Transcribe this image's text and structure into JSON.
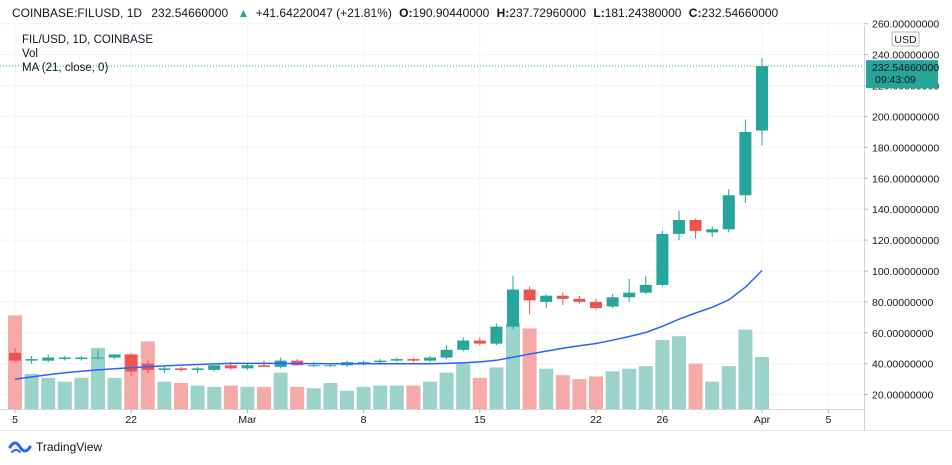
{
  "header": {
    "symbol": "COINBASE:FILUSD, 1D",
    "last": "232.54660000",
    "change_arrow": "▲",
    "change": "+41.64220047 (+21.81%)",
    "o_label": "O:",
    "o_value": "190.90440000",
    "h_label": "H:",
    "h_value": "237.72960000",
    "l_label": "L:",
    "l_value": "181.24380000",
    "c_label": "C:",
    "c_value": "232.54660000"
  },
  "legend": {
    "pair": "FIL/USD, 1D, COINBASE",
    "volume": "Vol",
    "ma": "MA (21, close, 0)"
  },
  "price_axis": {
    "currency": "USD",
    "last_price": "232.54660000",
    "countdown": "09:43:09"
  },
  "footer": {
    "brand": "TradingView",
    "logo_icon": "tradingview-logo-icon"
  },
  "colors": {
    "up": "#26a69a",
    "down": "#ef5350",
    "ma": "#2962ff",
    "up_volume": "#9bd3cb",
    "down_volume": "#f5aaa8"
  },
  "chart_data": {
    "type": "candlestick",
    "y_ticks": [
      "20.00000000",
      "40.00000000",
      "60.00000000",
      "80.00000000",
      "100.00000000",
      "120.00000000",
      "140.00000000",
      "160.00000000",
      "180.00000000",
      "200.00000000",
      "220.00000000",
      "240.00000000",
      "260.00000000"
    ],
    "ylim": [
      12,
      265
    ],
    "x_ticks": [
      {
        "label": "5",
        "day": 0
      },
      {
        "label": "22",
        "day": 7
      },
      {
        "label": "Mar",
        "day": 14
      },
      {
        "label": "8",
        "day": 21
      },
      {
        "label": "15",
        "day": 28
      },
      {
        "label": "22",
        "day": 35
      },
      {
        "label": "26",
        "day": 39
      },
      {
        "label": "Apr",
        "day": 45
      },
      {
        "label": "5",
        "day": 49
      }
    ],
    "candles": [
      {
        "o": 47,
        "h": 50,
        "l": 41,
        "c": 42,
        "vol": 72
      },
      {
        "o": 42,
        "h": 45,
        "l": 40,
        "c": 43,
        "vol": 27
      },
      {
        "o": 42,
        "h": 46,
        "l": 41,
        "c": 44,
        "vol": 24
      },
      {
        "o": 43,
        "h": 45,
        "l": 42,
        "c": 44,
        "vol": 21
      },
      {
        "o": 43,
        "h": 45,
        "l": 42,
        "c": 44,
        "vol": 24
      },
      {
        "o": 44,
        "h": 49,
        "l": 43,
        "c": 44,
        "vol": 47
      },
      {
        "o": 44,
        "h": 46,
        "l": 43,
        "c": 46,
        "vol": 24
      },
      {
        "o": 46,
        "h": 47,
        "l": 32,
        "c": 35,
        "vol": 42
      },
      {
        "o": 40,
        "h": 42,
        "l": 34,
        "c": 36,
        "vol": 52
      },
      {
        "o": 36,
        "h": 38,
        "l": 34,
        "c": 37,
        "vol": 21
      },
      {
        "o": 37,
        "h": 38,
        "l": 35,
        "c": 36,
        "vol": 20
      },
      {
        "o": 36,
        "h": 38,
        "l": 34,
        "c": 37,
        "vol": 18
      },
      {
        "o": 36,
        "h": 39,
        "l": 35,
        "c": 39,
        "vol": 17
      },
      {
        "o": 39,
        "h": 41,
        "l": 36,
        "c": 37,
        "vol": 18
      },
      {
        "o": 37,
        "h": 40,
        "l": 36,
        "c": 39,
        "vol": 17
      },
      {
        "o": 39,
        "h": 42,
        "l": 38,
        "c": 38,
        "vol": 17
      },
      {
        "o": 38,
        "h": 44,
        "l": 37,
        "c": 42,
        "vol": 28
      },
      {
        "o": 42,
        "h": 43,
        "l": 39,
        "c": 39,
        "vol": 17
      },
      {
        "o": 39,
        "h": 41,
        "l": 38,
        "c": 39,
        "vol": 16
      },
      {
        "o": 39,
        "h": 40,
        "l": 38,
        "c": 39,
        "vol": 20
      },
      {
        "o": 39,
        "h": 42,
        "l": 38,
        "c": 41,
        "vol": 14
      },
      {
        "o": 41,
        "h": 42,
        "l": 39,
        "c": 41,
        "vol": 17
      },
      {
        "o": 41,
        "h": 43,
        "l": 40,
        "c": 42,
        "vol": 18
      },
      {
        "o": 42,
        "h": 44,
        "l": 41,
        "c": 43,
        "vol": 18
      },
      {
        "o": 43,
        "h": 44,
        "l": 41,
        "c": 42,
        "vol": 18
      },
      {
        "o": 42,
        "h": 45,
        "l": 41,
        "c": 44,
        "vol": 21
      },
      {
        "o": 44,
        "h": 52,
        "l": 43,
        "c": 49,
        "vol": 28
      },
      {
        "o": 49,
        "h": 57,
        "l": 48,
        "c": 55,
        "vol": 35
      },
      {
        "o": 55,
        "h": 57,
        "l": 52,
        "c": 53,
        "vol": 24
      },
      {
        "o": 53,
        "h": 66,
        "l": 52,
        "c": 64,
        "vol": 32
      },
      {
        "o": 64,
        "h": 97,
        "l": 62,
        "c": 88,
        "vol": 66
      },
      {
        "o": 88,
        "h": 90,
        "l": 72,
        "c": 81,
        "vol": 62
      },
      {
        "o": 80,
        "h": 85,
        "l": 76,
        "c": 84,
        "vol": 31
      },
      {
        "o": 84,
        "h": 86,
        "l": 78,
        "c": 82,
        "vol": 26
      },
      {
        "o": 82,
        "h": 84,
        "l": 79,
        "c": 80,
        "vol": 23
      },
      {
        "o": 80,
        "h": 82,
        "l": 75,
        "c": 76,
        "vol": 25
      },
      {
        "o": 77,
        "h": 85,
        "l": 76,
        "c": 83,
        "vol": 29
      },
      {
        "o": 83,
        "h": 95,
        "l": 80,
        "c": 86,
        "vol": 31
      },
      {
        "o": 86,
        "h": 97,
        "l": 85,
        "c": 91,
        "vol": 33
      },
      {
        "o": 91,
        "h": 126,
        "l": 90,
        "c": 124,
        "vol": 53
      },
      {
        "o": 124,
        "h": 139,
        "l": 120,
        "c": 133,
        "vol": 56
      },
      {
        "o": 133,
        "h": 134,
        "l": 121,
        "c": 126,
        "vol": 35
      },
      {
        "o": 125,
        "h": 129,
        "l": 122,
        "c": 127,
        "vol": 21
      },
      {
        "o": 127,
        "h": 153,
        "l": 125,
        "c": 149,
        "vol": 33
      },
      {
        "o": 149,
        "h": 198,
        "l": 144,
        "c": 190,
        "vol": 61
      },
      {
        "o": 190.9044,
        "h": 237.7296,
        "l": 181.2438,
        "c": 232.5466,
        "vol": 40
      }
    ],
    "ma_series": {
      "name": "MA (21, close, 0)",
      "values": [
        30,
        31.5,
        32.9,
        34.1,
        35.1,
        36,
        36.8,
        37.4,
        38,
        38.6,
        39.1,
        39.5,
        39.9,
        40.2,
        40.2,
        40.2,
        40.2,
        40.1,
        40.1,
        40,
        40,
        40,
        40,
        40,
        40,
        40,
        40.2,
        40.6,
        41.2,
        42.2,
        44.2,
        46.2,
        48.2,
        50,
        51.6,
        53.1,
        55.2,
        57.6,
        60.2,
        64.2,
        68.8,
        72.8,
        76.5,
        81.3,
        89.5,
        100.3
      ]
    }
  }
}
